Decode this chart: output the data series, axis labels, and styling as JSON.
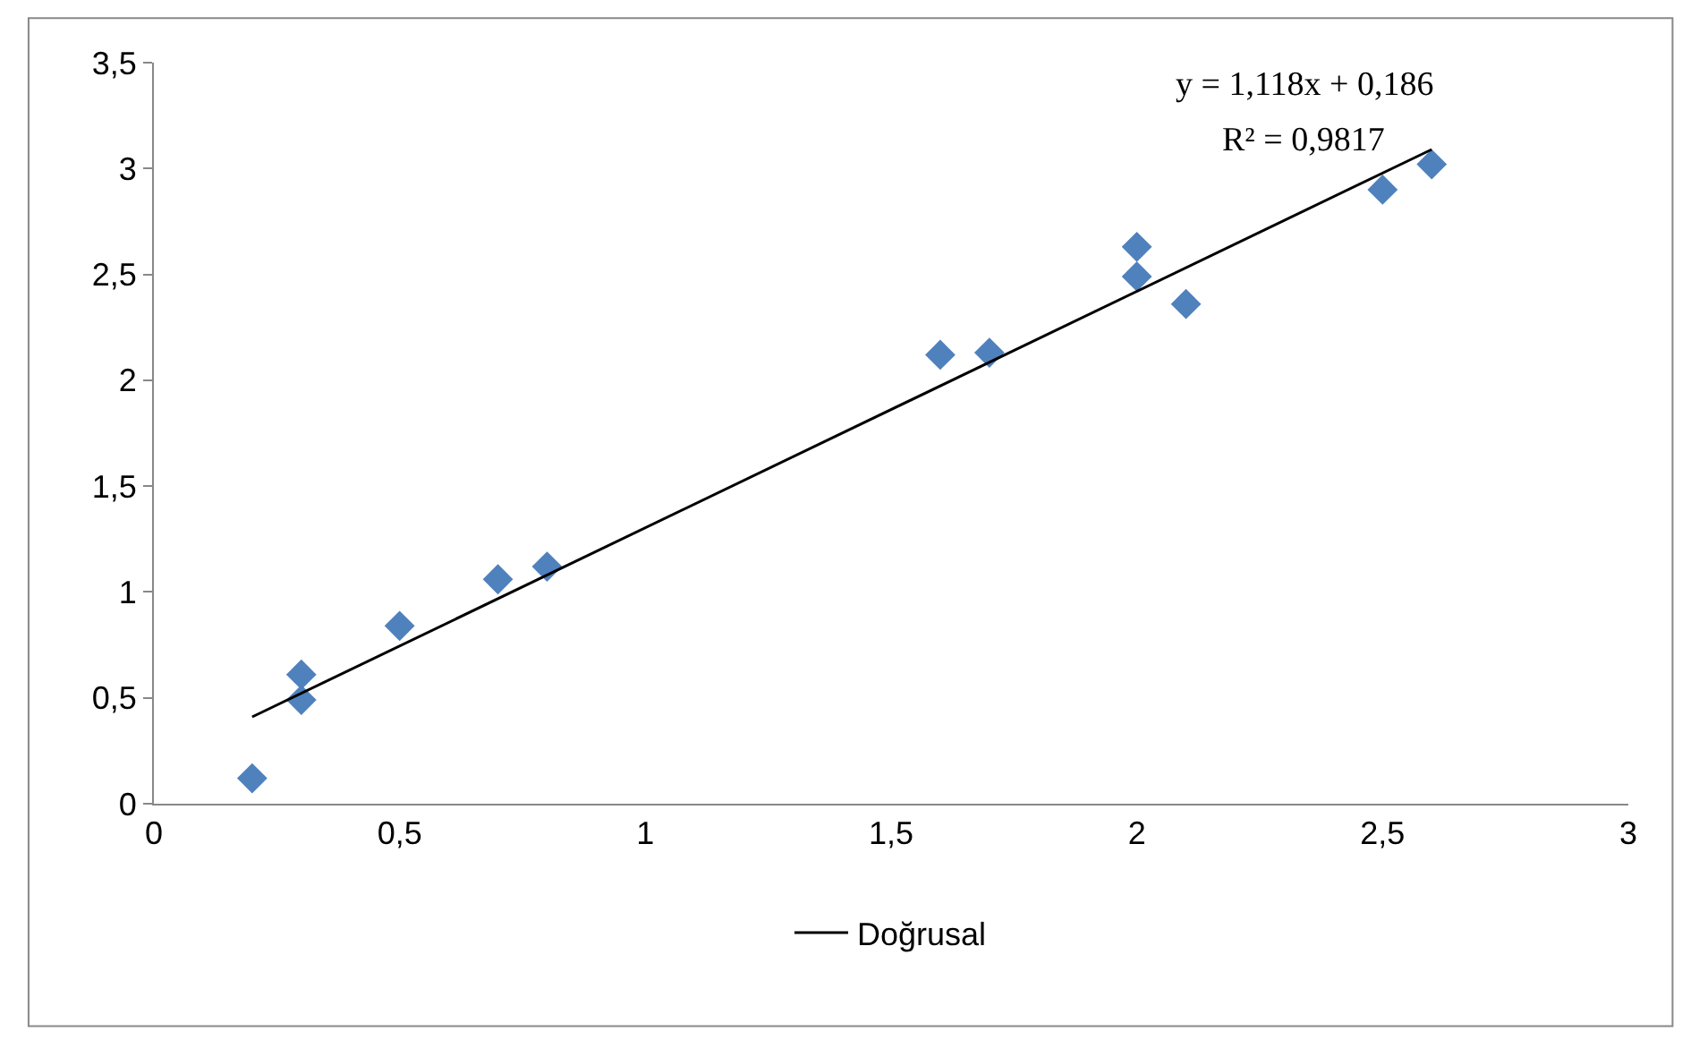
{
  "chart_data": {
    "type": "scatter",
    "grid": false,
    "legend": "bottom",
    "xlim": [
      0,
      3
    ],
    "xticks": [
      0,
      {
        "value": 0.5,
        "label": "0,5"
      },
      1,
      {
        "value": 1.5,
        "label": "1,5"
      },
      2,
      {
        "value": 2.5,
        "label": "2,5"
      },
      3
    ],
    "ylim": [
      0,
      3.5
    ],
    "yticks": [
      0,
      {
        "value": 0.5,
        "label": "0,5"
      },
      1,
      {
        "value": 1.5,
        "label": "1,5"
      },
      2,
      {
        "value": 2.5,
        "label": "2,5"
      },
      3,
      {
        "value": 3.5,
        "label": "3,5"
      }
    ],
    "series": [
      {
        "color": "#4f81bd",
        "marker": "diamond",
        "x": [
          0.2,
          0.3,
          0.3,
          0.5,
          0.7,
          0.8,
          1.6,
          1.7,
          2.0,
          2.0,
          2.1,
          2.5,
          2.6
        ],
        "values": [
          0.12,
          0.61,
          0.49,
          0.84,
          1.06,
          1.12,
          2.12,
          2.13,
          2.63,
          2.49,
          2.36,
          2.9,
          3.02
        ]
      },
      {
        "type": "line",
        "name": "Doğrusal",
        "color": "#000000",
        "marker": "none",
        "line_style": "solid",
        "x": [
          0.2,
          2.6
        ],
        "values": [
          0.41,
          3.09
        ]
      }
    ],
    "annotations": [
      "y = 1,118x + 0,186",
      "R² = 0,9817"
    ]
  }
}
